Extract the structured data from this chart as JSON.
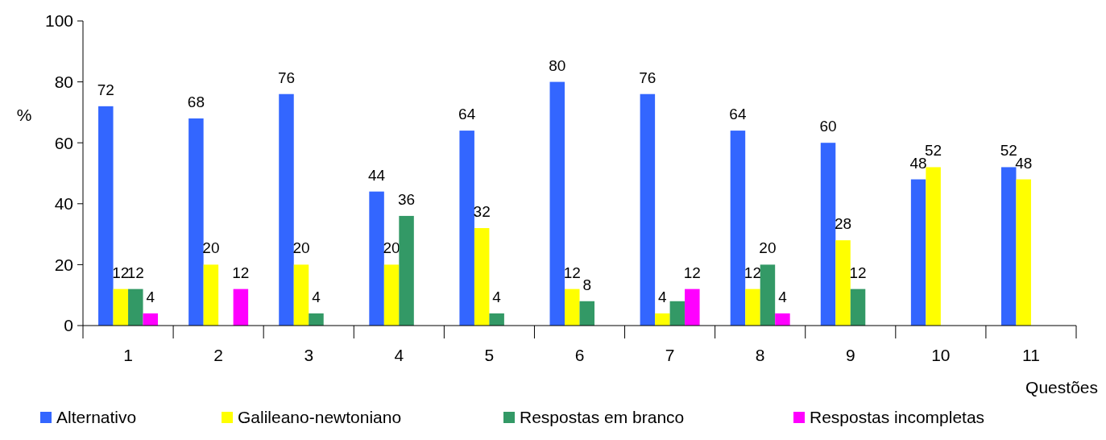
{
  "chart_data": {
    "type": "bar",
    "xlabel": "Questões",
    "ylabel": "%",
    "categories": [
      "1",
      "2",
      "3",
      "4",
      "5",
      "6",
      "7",
      "8",
      "9",
      "10",
      "11"
    ],
    "series": [
      {
        "name": "Alternativo",
        "color": "#3366ff",
        "values": [
          72,
          68,
          76,
          44,
          64,
          80,
          76,
          64,
          60,
          48,
          52
        ],
        "value_labels": [
          "72",
          "68",
          "76",
          "44",
          "64",
          "80",
          "76",
          "64",
          "60",
          "48",
          "52"
        ]
      },
      {
        "name": "Galileano-newtoniano",
        "color": "#ffff00",
        "values": [
          12,
          20,
          20,
          20,
          32,
          12,
          4,
          12,
          28,
          52,
          48
        ],
        "value_labels": [
          "12",
          "20",
          "20",
          "20",
          "32",
          "12",
          "4",
          "12",
          "28",
          "52",
          "48"
        ]
      },
      {
        "name": "Respostas em branco",
        "color": "#339966",
        "values": [
          12,
          0,
          4,
          36,
          4,
          8,
          8,
          20,
          12,
          0,
          0
        ],
        "value_labels": [
          "12",
          null,
          "4",
          "36",
          "4",
          "8",
          null,
          "20",
          "12",
          null,
          null
        ]
      },
      {
        "name": "Respostas incompletas",
        "color": "#ff00ff",
        "values": [
          4,
          12,
          0,
          0,
          0,
          0,
          12,
          4,
          0,
          0,
          0
        ],
        "value_labels": [
          "4",
          "12",
          null,
          null,
          null,
          null,
          "12",
          "4",
          null,
          null,
          null
        ]
      }
    ],
    "ylim": [
      0,
      100
    ],
    "yticks": [
      0,
      20,
      40,
      60,
      80,
      100
    ],
    "grid": false,
    "legend": "bottom"
  }
}
